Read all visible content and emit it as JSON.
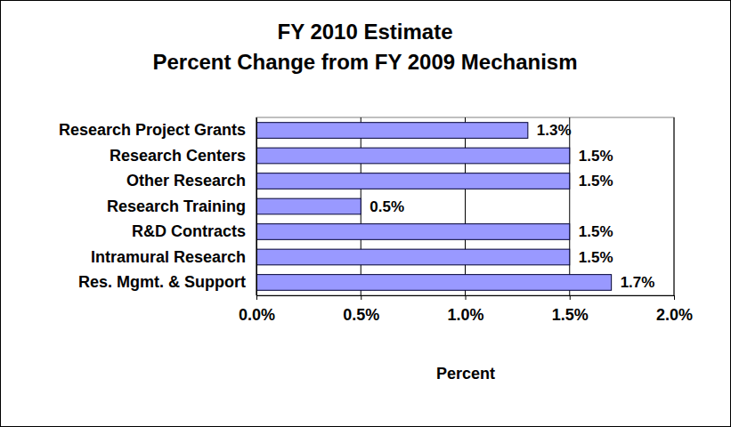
{
  "chart_data": {
    "type": "bar",
    "orientation": "horizontal",
    "title": "FY 2010 Estimate",
    "subtitle": "Percent Change from FY 2009 Mechanism",
    "xlabel": "Percent",
    "categories": [
      "Research Project Grants",
      "Research Centers",
      "Other Research",
      "Research Training",
      "R&D Contracts",
      "Intramural Research",
      "Res. Mgmt. & Support"
    ],
    "values": [
      1.3,
      1.5,
      1.5,
      0.5,
      1.5,
      1.5,
      1.7
    ],
    "value_labels": [
      "1.3%",
      "1.5%",
      "1.5%",
      "0.5%",
      "1.5%",
      "1.5%",
      "1.7%"
    ],
    "color": "#9999ff",
    "xlim": [
      0,
      2
    ],
    "xticks": [
      {
        "value": 0,
        "label": "0.0%"
      },
      {
        "value": 0.5,
        "label": "0.5%"
      },
      {
        "value": 1,
        "label": "1.0%"
      },
      {
        "value": 1.5,
        "label": "1.5%"
      },
      {
        "value": 2,
        "label": "2.0%"
      }
    ],
    "grid": true,
    "data_labels": true
  }
}
